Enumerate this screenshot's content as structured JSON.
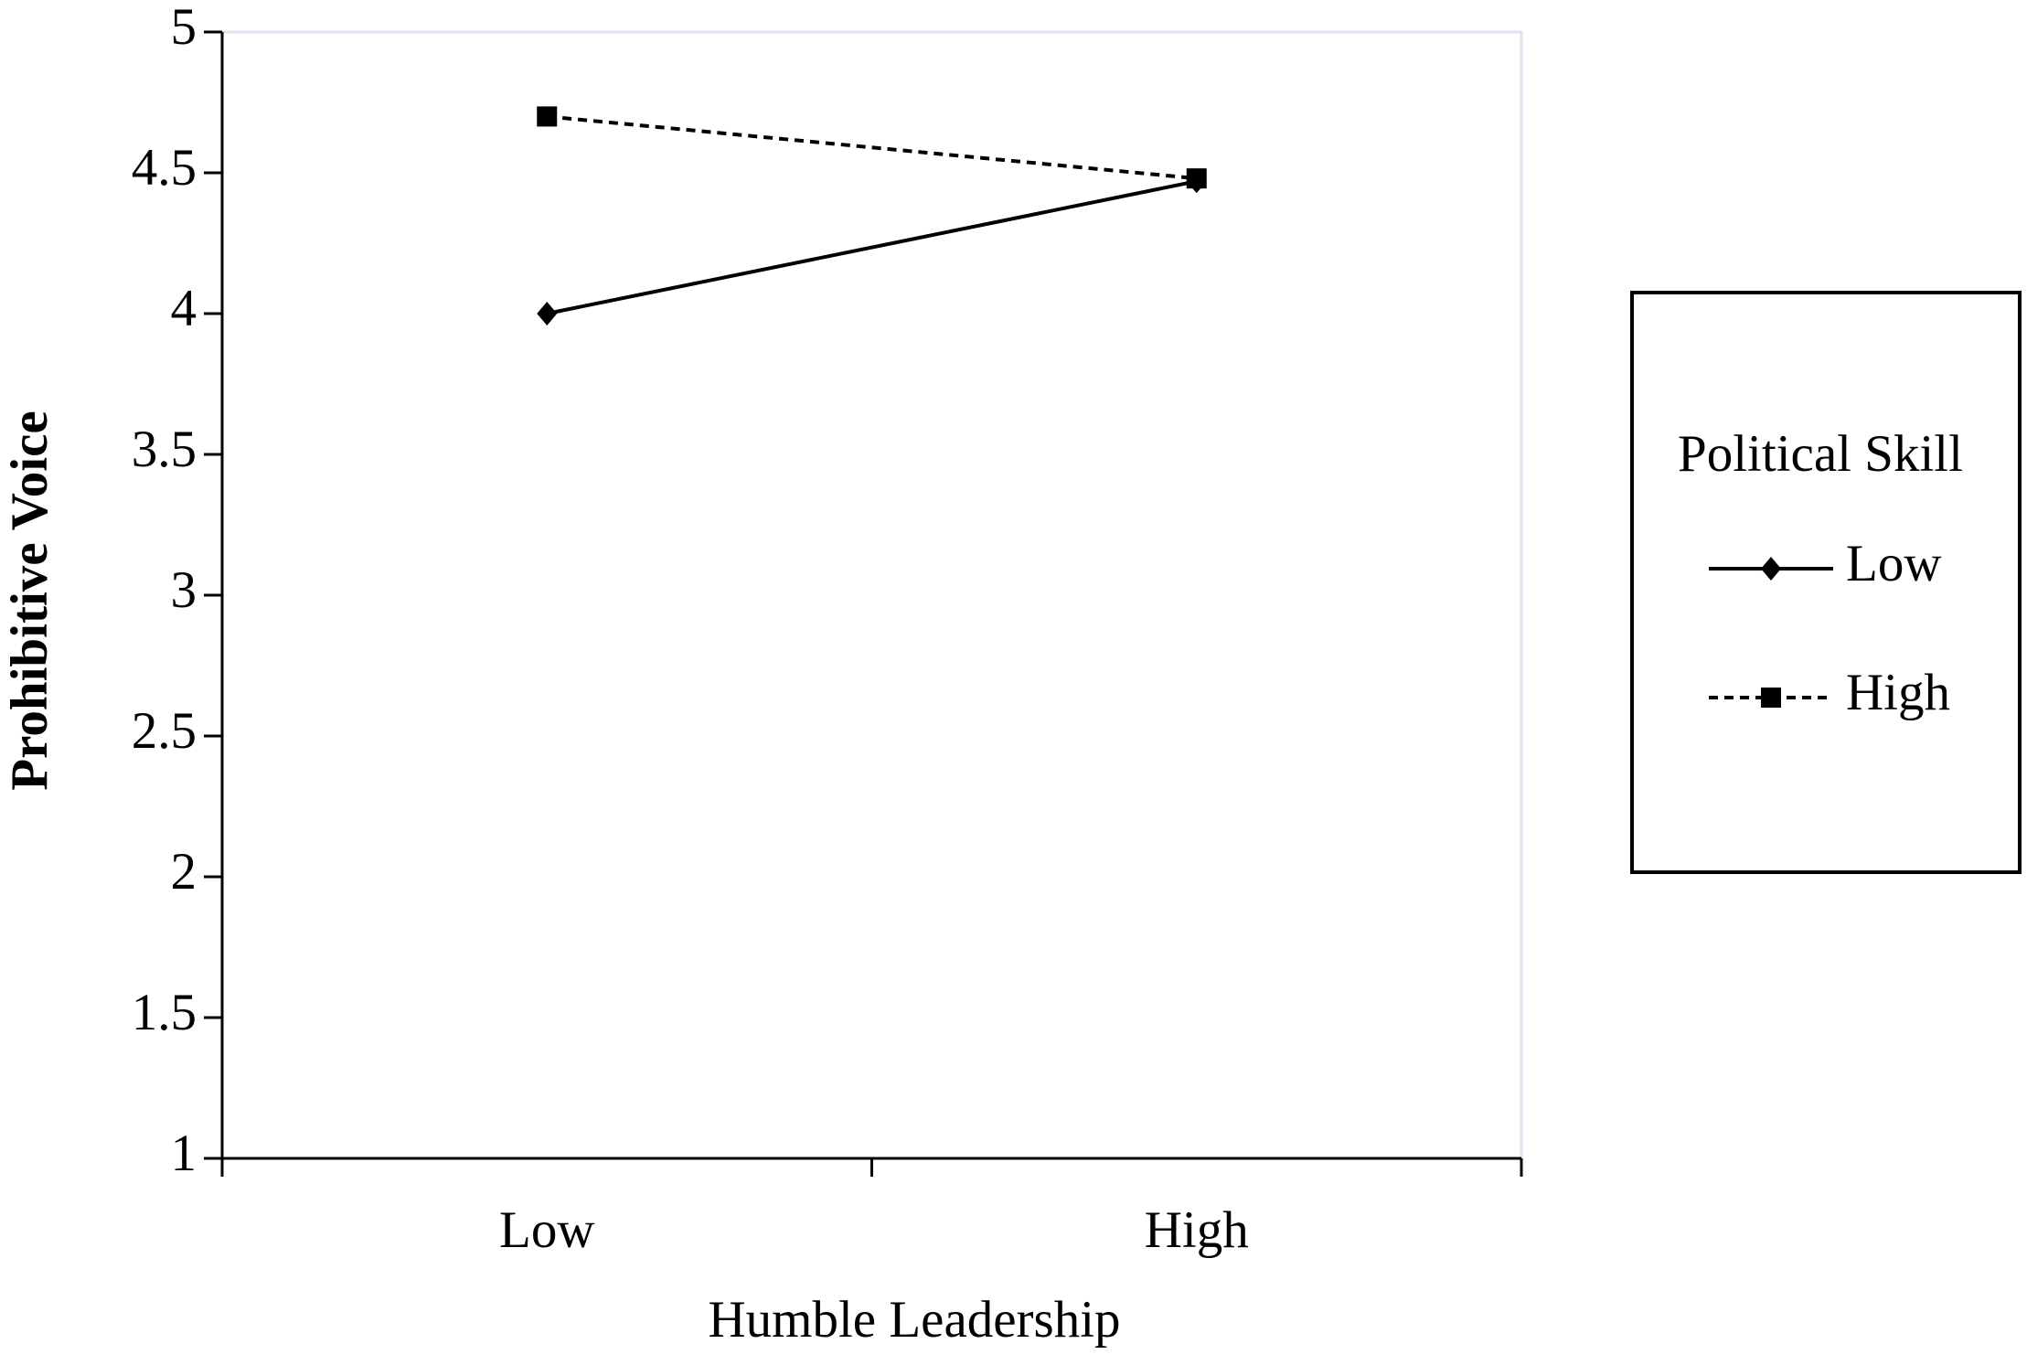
{
  "chart_data": {
    "type": "line",
    "x_label": "Humble Leadership",
    "y_label": "Prohibitive Voice",
    "categories": [
      "Low",
      "High"
    ],
    "series": [
      {
        "name": "Low",
        "color": "#000000",
        "marker": "diamond",
        "dashed": false,
        "values": [
          4.0,
          4.47
        ]
      },
      {
        "name": "High",
        "color": "#000000",
        "marker": "square",
        "dashed": true,
        "values": [
          4.7,
          4.48
        ]
      }
    ],
    "ylim": [
      1,
      5
    ],
    "yticks": [
      1,
      1.5,
      2,
      2.5,
      3,
      3.5,
      4,
      4.5,
      5
    ],
    "grid": false,
    "legend_title": "Political Skill",
    "legend_position": "right"
  }
}
